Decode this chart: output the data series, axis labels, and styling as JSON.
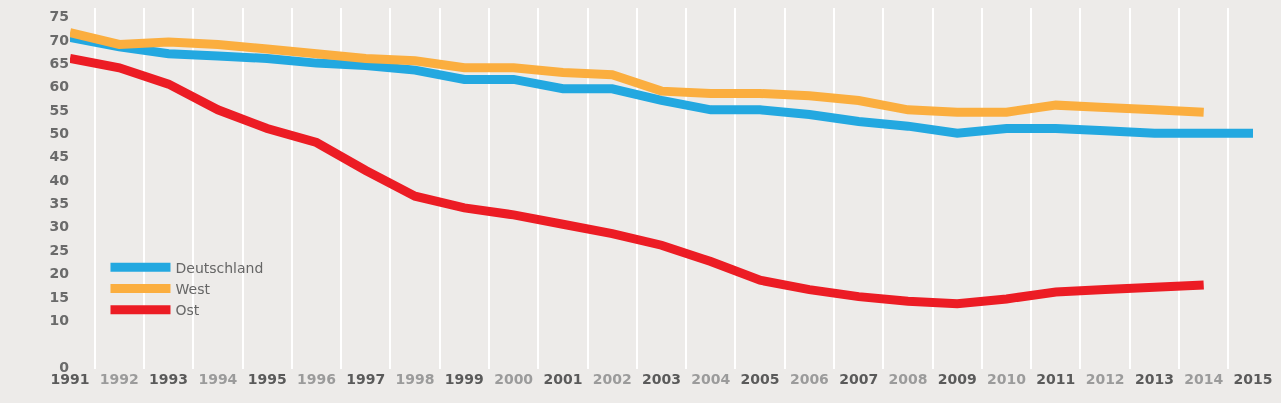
{
  "chart_data": {
    "type": "line",
    "x": [
      1991,
      1992,
      1993,
      1994,
      1995,
      1996,
      1997,
      1998,
      1999,
      2000,
      2001,
      2002,
      2003,
      2004,
      2005,
      2006,
      2007,
      2008,
      2009,
      2010,
      2011,
      2012,
      2013,
      2014,
      2015
    ],
    "series": [
      {
        "name": "Deutschland",
        "color": "#23a8e0",
        "values": [
          70.5,
          68.5,
          67,
          66.5,
          66,
          65,
          64.5,
          63.5,
          61.5,
          61.5,
          59.5,
          59.5,
          57,
          55,
          55,
          54,
          52.5,
          51.5,
          50,
          51,
          51,
          50.5,
          50,
          50,
          50
        ]
      },
      {
        "name": "West",
        "color": "#fbae3f",
        "values": [
          71.5,
          69,
          69.5,
          69,
          68,
          67,
          66,
          65.5,
          64,
          64,
          63,
          62.5,
          59,
          58.5,
          58.5,
          58,
          57,
          55,
          54.5,
          54.5,
          56,
          55.5,
          55,
          54.5,
          null
        ]
      },
      {
        "name": "Ost",
        "color": "#ec1c24",
        "values": [
          66,
          64,
          60.5,
          55,
          51,
          48,
          42,
          36.5,
          34,
          32.5,
          30.5,
          28.5,
          26,
          22.5,
          18.5,
          16.5,
          15,
          14,
          13.5,
          14.5,
          16,
          16.5,
          17,
          17.5,
          null
        ]
      }
    ],
    "xlim": [
      1991,
      2015
    ],
    "xticks": [
      1991,
      1992,
      1993,
      1994,
      1995,
      1996,
      1997,
      1998,
      1999,
      2000,
      2001,
      2002,
      2003,
      2004,
      2005,
      2006,
      2007,
      2008,
      2009,
      2010,
      2011,
      2012,
      2013,
      2014,
      2015
    ],
    "ylim": [
      -0.5,
      76.8
    ],
    "yticks": [
      0,
      10,
      15,
      20,
      25,
      30,
      35,
      40,
      45,
      50,
      55,
      60,
      65,
      70,
      75
    ],
    "grid": "x",
    "legend": "bottom left",
    "marker": "none",
    "line_style": "solid"
  }
}
